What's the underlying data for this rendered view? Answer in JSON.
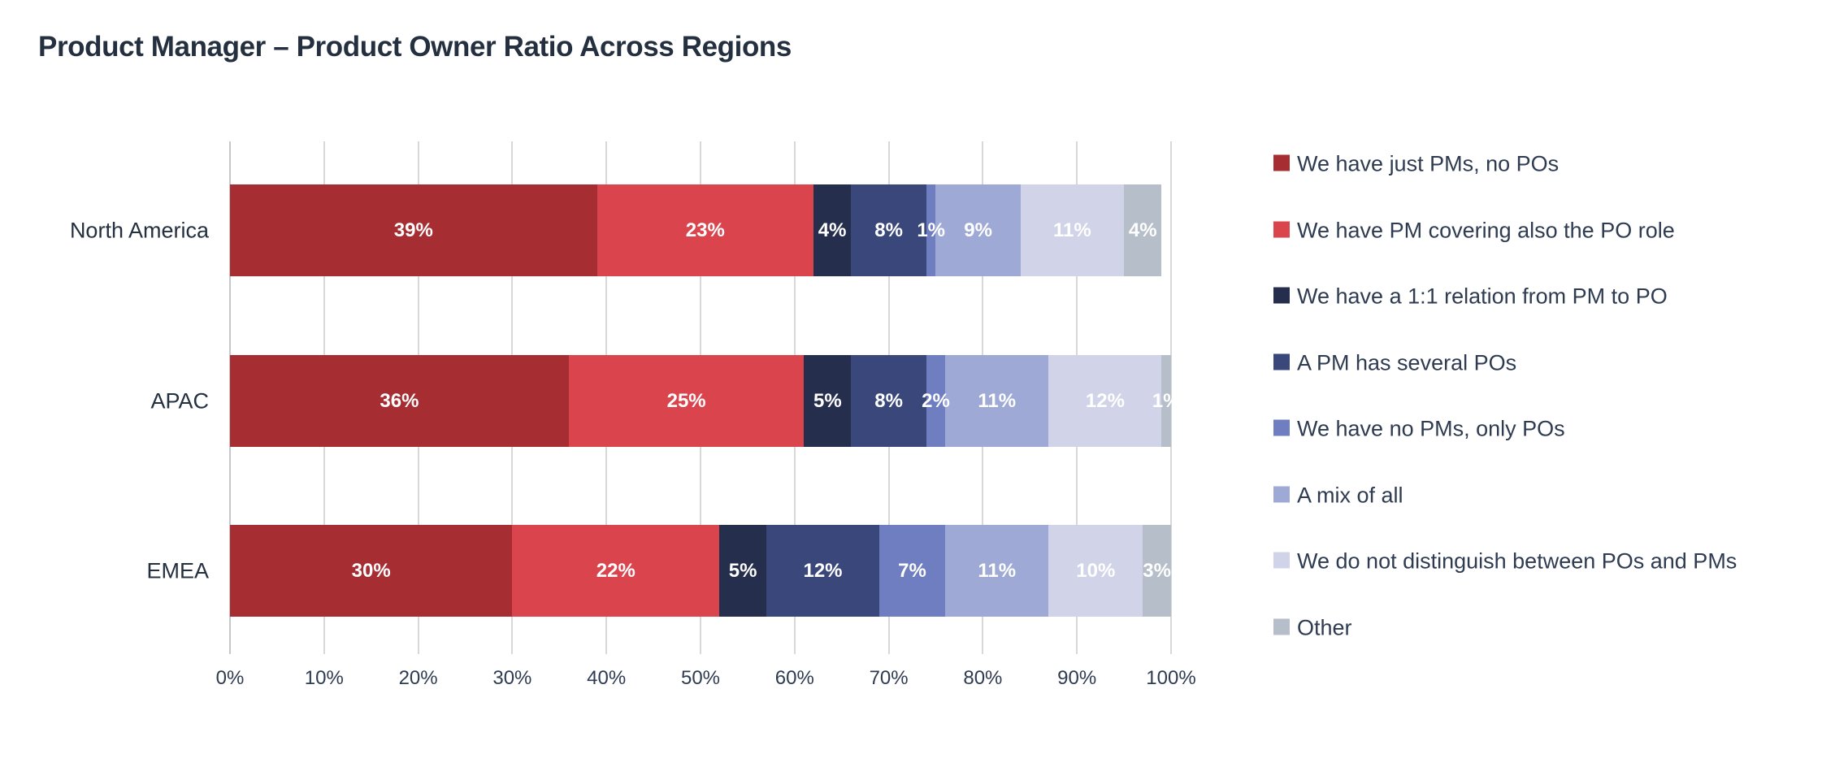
{
  "title": "Product Manager – Product Owner Ratio Across Regions",
  "chart_data": {
    "type": "bar",
    "orientation": "horizontal",
    "stacked": true,
    "title": "Product Manager – Product Owner Ratio Across Regions",
    "categories": [
      "North America",
      "APAC",
      "EMEA"
    ],
    "series": [
      {
        "name": "We have just PMs, no POs",
        "color": "#A62D32",
        "values": [
          39,
          36,
          30
        ]
      },
      {
        "name": "We have PM covering also the PO role",
        "color": "#DA454D",
        "values": [
          23,
          25,
          22
        ]
      },
      {
        "name": "We have a 1:1 relation from PM to PO",
        "color": "#262E4E",
        "values": [
          4,
          5,
          5
        ]
      },
      {
        "name": "A PM has several POs",
        "color": "#3A477B",
        "values": [
          8,
          8,
          12
        ]
      },
      {
        "name": "We have no PMs, only POs",
        "color": "#6F7DC1",
        "values": [
          1,
          2,
          7
        ]
      },
      {
        "name": "A mix of all",
        "color": "#9FA9D5",
        "values": [
          9,
          11,
          11
        ]
      },
      {
        "name": "We do not distinguish between POs and PMs",
        "color": "#D1D4E8",
        "values": [
          11,
          12,
          10
        ]
      },
      {
        "name": "Other",
        "color": "#B6BEC9",
        "values": [
          4,
          1,
          3
        ]
      }
    ],
    "data_labels": [
      [
        "39%",
        "36%",
        "30%"
      ],
      [
        "23%",
        "25%",
        "22%"
      ],
      [
        "4%",
        "5%",
        "5%"
      ],
      [
        "8%",
        "8%",
        "12%"
      ],
      [
        "1%",
        "2%",
        "7%"
      ],
      [
        "9%",
        "11%",
        "11%"
      ],
      [
        "11%",
        "12%",
        "10%"
      ],
      [
        "4%",
        "1%",
        "3%"
      ]
    ],
    "x_ticks": [
      "0%",
      "10%",
      "20%",
      "30%",
      "40%",
      "50%",
      "60%",
      "70%",
      "80%",
      "90%",
      "100%"
    ],
    "xlim": [
      0,
      100
    ],
    "xlabel": "",
    "ylabel": "",
    "grid": true,
    "legend_position": "right",
    "data_label_color": "#FFFFFF",
    "background_color": "#FFFFFF"
  }
}
